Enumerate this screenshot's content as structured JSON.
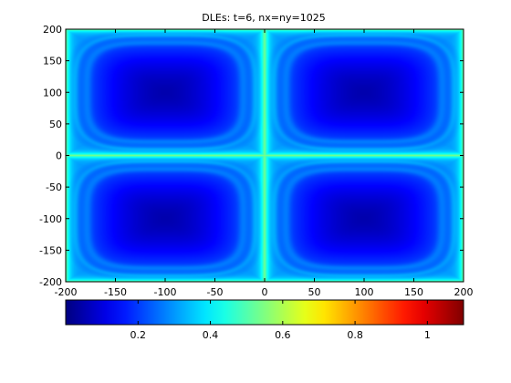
{
  "chart_data": {
    "type": "heatmap",
    "title": "DLEs: t=6, nx=ny=1025",
    "xlabel": "",
    "ylabel": "",
    "xlim": [
      -200,
      200
    ],
    "ylim": [
      -200,
      200
    ],
    "x_ticks": [
      -200,
      -150,
      -100,
      -50,
      0,
      50,
      100,
      150,
      200
    ],
    "y_ticks": [
      200,
      150,
      100,
      50,
      0,
      -50,
      -100,
      -150,
      -200
    ],
    "grid": false,
    "cell_centers": [
      {
        "x": -100,
        "y": 100,
        "value": 0.05
      },
      {
        "x": 100,
        "y": 100,
        "value": 0.05
      },
      {
        "x": -100,
        "y": -100,
        "value": 0.05
      },
      {
        "x": 100,
        "y": -100,
        "value": 0.05
      }
    ],
    "separatrix_value": 0.6,
    "colorbar": {
      "orientation": "horizontal",
      "placement": "bottom",
      "colormap": "jet",
      "range": [
        0,
        1.1
      ],
      "ticks": [
        0.2,
        0.4,
        0.6,
        0.8,
        1
      ]
    }
  }
}
